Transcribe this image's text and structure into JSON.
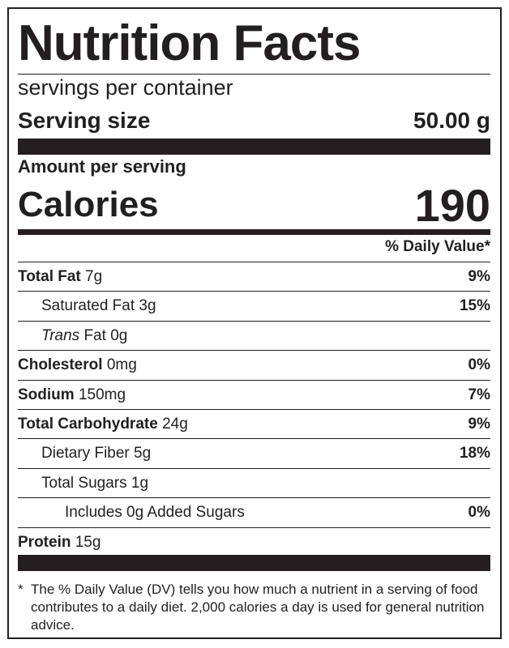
{
  "title": "Nutrition Facts",
  "servings_per_container": "servings per container",
  "serving_size": {
    "label": "Serving size",
    "value": "50.00 g"
  },
  "amount_per_serving": "Amount per serving",
  "calories": {
    "label": "Calories",
    "value": "190"
  },
  "daily_value_header": "% Daily Value*",
  "nutrients": [
    {
      "name": "Total Fat",
      "amount": "7g",
      "dv": "9%",
      "bold": true,
      "indent": 0
    },
    {
      "name": "Saturated Fat",
      "amount": "3g",
      "dv": "15%",
      "bold": false,
      "indent": 1
    },
    {
      "name": "Trans",
      "suffix": "Fat",
      "amount": "0g",
      "dv": "",
      "bold": false,
      "indent": 1,
      "italic_prefix": true
    },
    {
      "name": "Cholesterol",
      "amount": "0mg",
      "dv": "0%",
      "bold": true,
      "indent": 0
    },
    {
      "name": "Sodium",
      "amount": "150mg",
      "dv": "7%",
      "bold": true,
      "indent": 0
    },
    {
      "name": "Total Carbohydrate",
      "amount": "24g",
      "dv": "9%",
      "bold": true,
      "indent": 0
    },
    {
      "name": "Dietary Fiber",
      "amount": "5g",
      "dv": "18%",
      "bold": false,
      "indent": 1
    },
    {
      "name": "Total Sugars",
      "amount": "1g",
      "dv": "",
      "bold": false,
      "indent": 1
    },
    {
      "name": "Includes 0g Added Sugars",
      "amount": "",
      "dv": "0%",
      "bold": false,
      "indent": 2
    },
    {
      "name": "Protein",
      "amount": "15g",
      "dv": "",
      "bold": true,
      "indent": 0
    }
  ],
  "footnote": {
    "marker": "*",
    "text": "The % Daily Value (DV) tells you how much a nutrient in a serving of food contributes to a daily diet. 2,000 calories a day is used for general nutrition advice."
  }
}
